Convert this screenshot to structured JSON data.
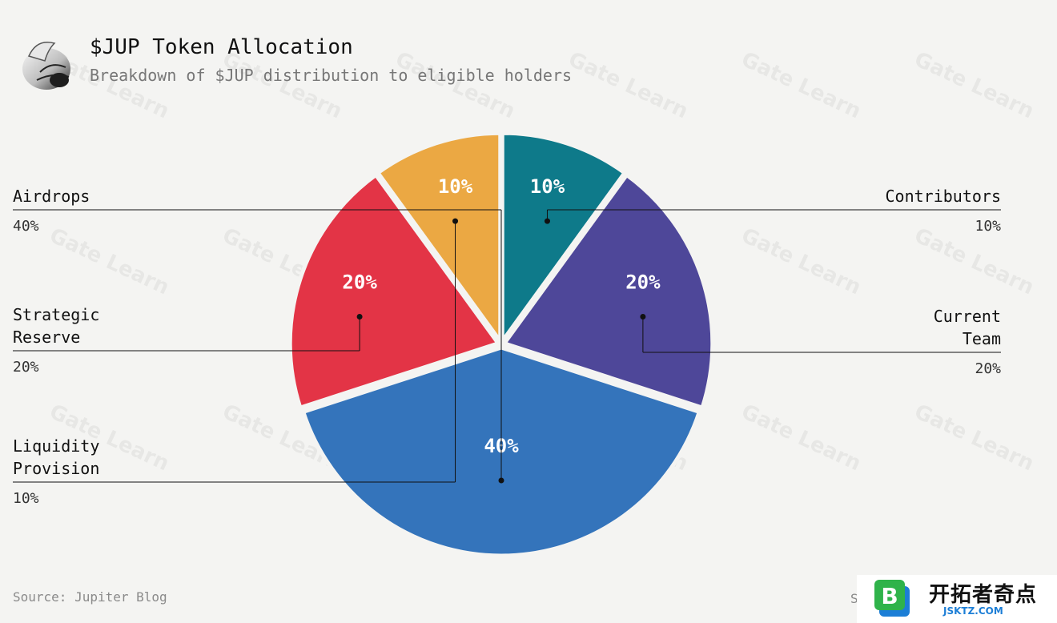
{
  "header": {
    "title": "$JUP Token Allocation",
    "subtitle": "Breakdown of $JUP distribution to eligible holders"
  },
  "chart_data": {
    "type": "pie",
    "slices": [
      {
        "label": "Contributors",
        "value": 10,
        "pct_label": "10%",
        "legend_lines": [
          "Contributors"
        ],
        "legend_side": "right",
        "color": "#0e7a8a"
      },
      {
        "label": "Current Team",
        "value": 20,
        "pct_label": "20%",
        "legend_lines": [
          "Current",
          "Team"
        ],
        "legend_side": "right",
        "color": "#4e4799"
      },
      {
        "label": "Airdrops",
        "value": 40,
        "pct_label": "40%",
        "legend_lines": [
          "Airdrops"
        ],
        "legend_side": "left",
        "color": "#3474bb"
      },
      {
        "label": "Strategic Reserve",
        "value": 20,
        "pct_label": "20%",
        "legend_lines": [
          "Strategic",
          "Reserve"
        ],
        "legend_side": "left",
        "color": "#e33446"
      },
      {
        "label": "Liquidity Provision",
        "value": 10,
        "pct_label": "10%",
        "legend_lines": [
          "Liquidity",
          "Provision"
        ],
        "legend_side": "left",
        "color": "#eba843"
      }
    ]
  },
  "footer": {
    "source": "Source: Jupiter Blog",
    "source_edge": "S"
  },
  "brand": {
    "name": "开拓者奇点",
    "url": "JSKTZ.COM",
    "letter": "B",
    "watermark": "Gate Learn"
  },
  "colors": {
    "background": "#f4f4f2",
    "brand_green": "#2fb34a",
    "brand_blue": "#1c7ed6"
  }
}
